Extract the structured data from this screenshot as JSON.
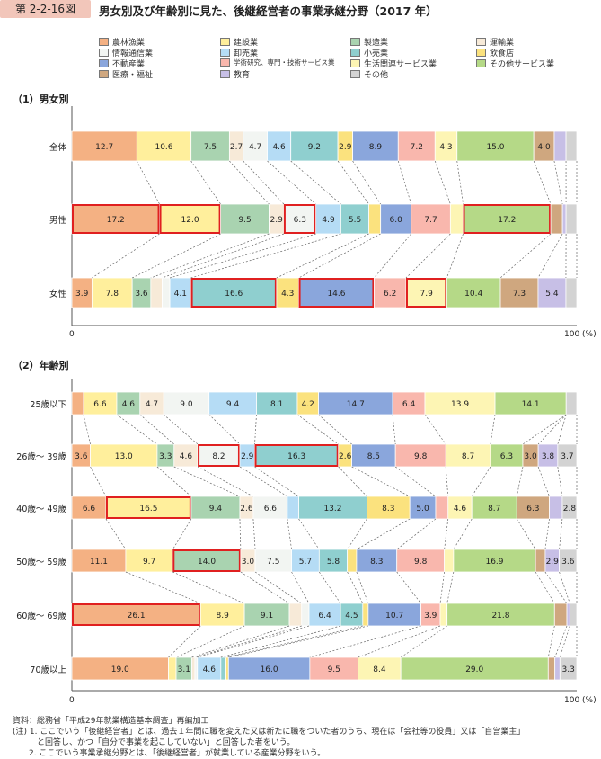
{
  "header": {
    "badge": "第 2-2-16図",
    "title": "男女別及び年齢別に見た、後継経営者の事業承継分野（2017 年）"
  },
  "categories": [
    {
      "name": "農林漁業",
      "color": "#f4b183"
    },
    {
      "name": "建設業",
      "color": "#ffef9c"
    },
    {
      "name": "製造業",
      "color": "#a9d3b0"
    },
    {
      "name": "運輸業",
      "color": "#f7ead8"
    },
    {
      "name": "情報通信業",
      "color": "#f2f5f2"
    },
    {
      "name": "卸売業",
      "color": "#b5dcf5"
    },
    {
      "name": "小売業",
      "color": "#8fcfcf"
    },
    {
      "name": "飲食店",
      "color": "#fbe27e"
    },
    {
      "name": "不動産業",
      "color": "#8aa6dc"
    },
    {
      "name": "学術研究、専門・技術サービス業",
      "color": "#f9b7ad"
    },
    {
      "name": "生活関連サービス業",
      "color": "#fdf5b4"
    },
    {
      "name": "その他サービス業",
      "color": "#b5d987"
    },
    {
      "name": "医療・福祉",
      "color": "#cfa77f"
    },
    {
      "name": "教育",
      "color": "#c7bfe6"
    },
    {
      "name": "その他",
      "color": "#d3d3d3"
    }
  ],
  "sections": [
    {
      "title": "（1）男女別",
      "axis_left": "0",
      "axis_right": "100 (%)"
    },
    {
      "title": "（2）年齢別",
      "axis_left": "0",
      "axis_right": "100 (%)"
    }
  ],
  "chart_data": [
    {
      "type": "bar",
      "stacked": "100%",
      "orientation": "horizontal",
      "title": "（1）男女別",
      "xlim": [
        0,
        100
      ],
      "unit": "%",
      "categories": [
        "全体",
        "男性",
        "女性"
      ],
      "values": [
        [
          12.7,
          10.6,
          7.5,
          2.7,
          4.7,
          4.6,
          9.2,
          2.9,
          8.9,
          7.2,
          4.3,
          15.0,
          4.0,
          2.3,
          2.1
        ],
        [
          17.2,
          12.0,
          9.5,
          2.9,
          6.3,
          4.9,
          5.5,
          2.3,
          6.0,
          7.7,
          2.5,
          17.2,
          2.3,
          0.7,
          2.1
        ],
        [
          3.9,
          7.8,
          3.6,
          2.2,
          1.5,
          4.1,
          16.6,
          4.3,
          14.6,
          6.2,
          7.9,
          10.4,
          7.3,
          5.4,
          2.1
        ]
      ],
      "highlighted": [
        [],
        [
          0,
          1,
          4,
          11
        ],
        [
          6,
          8,
          10
        ]
      ]
    },
    {
      "type": "bar",
      "stacked": "100%",
      "orientation": "horizontal",
      "title": "（2）年齢別",
      "xlim": [
        0,
        100
      ],
      "unit": "%",
      "categories": [
        "25歳以下",
        "26歳～ 39歳",
        "40歳～ 49歳",
        "50歳～ 59歳",
        "60歳～ 69歳",
        "70歳以上"
      ],
      "values": [
        [
          2.3,
          6.6,
          4.6,
          4.7,
          9.0,
          9.4,
          8.1,
          4.2,
          14.7,
          6.4,
          13.9,
          14.1,
          0.0,
          0.0,
          2.1
        ],
        [
          3.6,
          13.0,
          3.3,
          4.6,
          8.2,
          2.9,
          16.3,
          2.6,
          8.5,
          9.8,
          8.7,
          6.3,
          3.0,
          3.8,
          3.7
        ],
        [
          6.6,
          16.5,
          9.4,
          2.6,
          6.6,
          2.2,
          13.2,
          8.3,
          5.0,
          2.4,
          4.6,
          8.7,
          6.3,
          2.5,
          2.8
        ],
        [
          11.1,
          9.7,
          14.0,
          3.0,
          7.5,
          5.7,
          5.8,
          1.9,
          8.3,
          9.8,
          1.9,
          16.9,
          2.0,
          2.9,
          3.6
        ],
        [
          26.1,
          8.9,
          9.1,
          2.5,
          1.5,
          6.4,
          4.5,
          1.1,
          10.7,
          3.9,
          1.4,
          21.8,
          2.5,
          0.6,
          1.4
        ],
        [
          19.0,
          1.5,
          3.1,
          0.6,
          0.5,
          4.6,
          1.0,
          0.5,
          16.0,
          9.5,
          8.4,
          29.0,
          1.3,
          1.0,
          3.3
        ]
      ],
      "highlighted": [
        [],
        [
          4,
          6
        ],
        [
          1
        ],
        [
          2
        ],
        [
          0
        ],
        []
      ]
    }
  ],
  "notes": [
    "資料：総務省「平成29年就業構造基本調査」再編加工",
    "(注) 1. ここでいう「後継経営者」とは、過去１年間に職を変えた又は新たに職をついた者のうち、現在は「会社等の役員」又は「自営業主」",
    "　　　と回答し、かつ「自分で事業を起こしていない」と回答した者をいう。",
    "　　2. ここでいう事業承継分野とは、「後継経営者」が就業している産業分野をいう。"
  ]
}
